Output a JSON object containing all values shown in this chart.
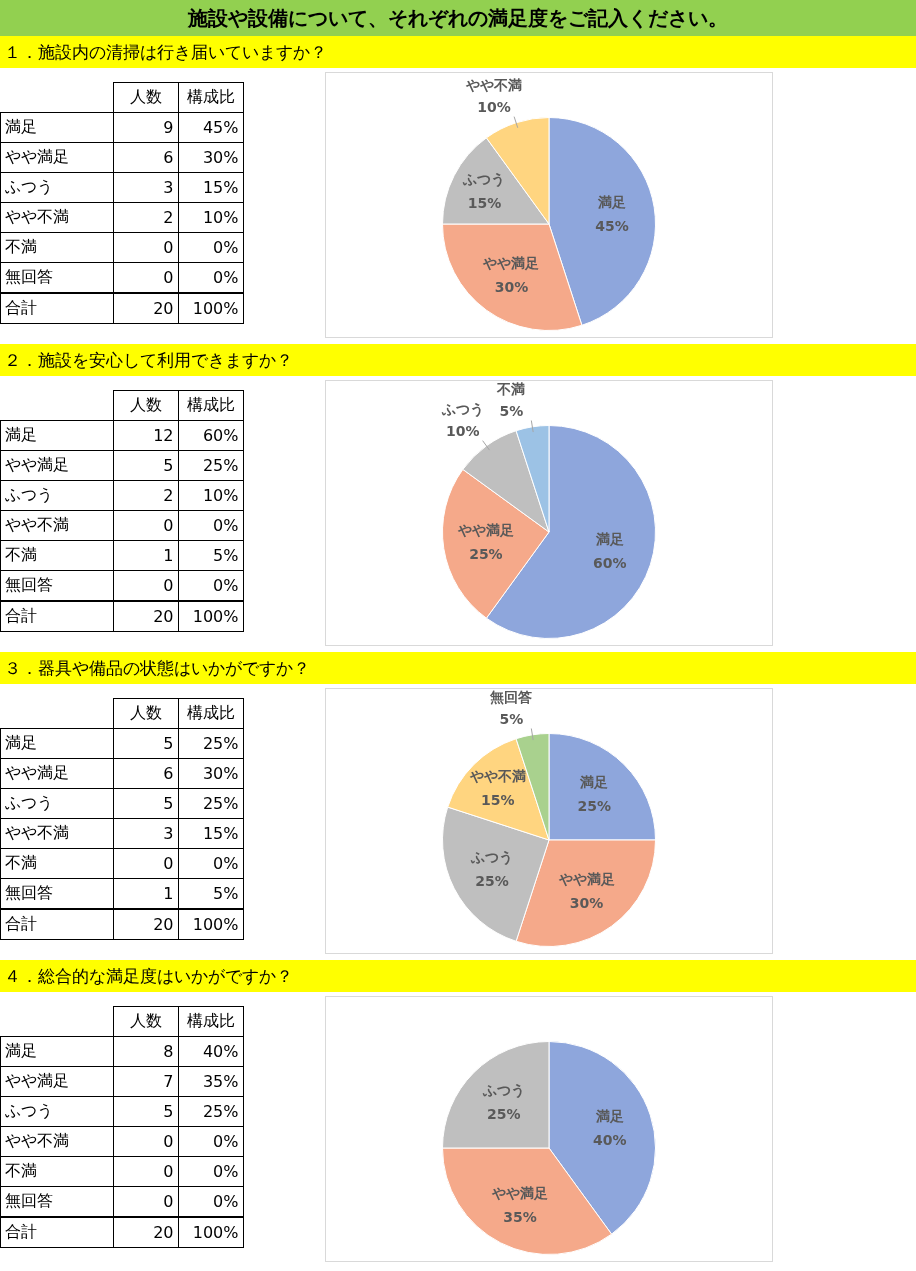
{
  "chart_data": [
    {
      "type": "other",
      "title": "施設や設備について、それぞれの満足度をご記入ください。"
    },
    {
      "type": "other",
      "title": "１．施設内の清掃は行き届いていますか？",
      "categories": [
        "満足",
        "やや満足",
        "ふつう",
        "やや不満",
        "不満",
        "無回答"
      ],
      "data_labels": true,
      "series": [
        {
          "name": "人数",
          "values": [
            9,
            6,
            3,
            2,
            0,
            0
          ]
        },
        {
          "name": "構成比",
          "values": [
            45,
            30,
            15,
            10,
            0,
            0
          ],
          "value_labels": [
            "45%",
            "30%",
            "15%",
            "10%",
            "0%",
            "0%"
          ]
        }
      ],
      "annotations": [
        "合計",
        "20",
        "100%"
      ]
    },
    {
      "type": "pie",
      "categories": [
        "満足",
        "やや満足",
        "ふつう",
        "やや不満"
      ],
      "values": [
        45,
        30,
        15,
        10
      ],
      "value_labels": [
        "45%",
        "30%",
        "15%",
        "10%"
      ],
      "colors": [
        "#8ea6dc",
        "#f5a98a",
        "#bfbfbf",
        "#ffd580"
      ]
    },
    {
      "type": "other",
      "title": "２．施設を安心して利用できますか？",
      "categories": [
        "満足",
        "やや満足",
        "ふつう",
        "やや不満",
        "不満",
        "無回答"
      ],
      "data_labels": true,
      "series": [
        {
          "name": "人数",
          "values": [
            12,
            5,
            2,
            0,
            1,
            0
          ]
        },
        {
          "name": "構成比",
          "values": [
            60,
            25,
            10,
            0,
            5,
            0
          ],
          "value_labels": [
            "60%",
            "25%",
            "10%",
            "0%",
            "5%",
            "0%"
          ]
        }
      ],
      "annotations": [
        "合計",
        "20",
        "100%"
      ]
    },
    {
      "type": "pie",
      "categories": [
        "満足",
        "やや満足",
        "ふつう",
        "不満"
      ],
      "values": [
        60,
        25,
        10,
        5
      ],
      "value_labels": [
        "60%",
        "25%",
        "10%",
        "5%"
      ],
      "colors": [
        "#8ea6dc",
        "#f5a98a",
        "#bfbfbf",
        "#9cc2e5"
      ]
    },
    {
      "type": "other",
      "title": "３．器具や備品の状態はいかがですか？",
      "categories": [
        "満足",
        "やや満足",
        "ふつう",
        "やや不満",
        "不満",
        "無回答"
      ],
      "data_labels": true,
      "series": [
        {
          "name": "人数",
          "values": [
            5,
            6,
            5,
            3,
            0,
            1
          ]
        },
        {
          "name": "構成比",
          "values": [
            25,
            30,
            25,
            15,
            0,
            5
          ],
          "value_labels": [
            "25%",
            "30%",
            "25%",
            "15%",
            "0%",
            "5%"
          ]
        }
      ],
      "annotations": [
        "合計",
        "20",
        "100%"
      ]
    },
    {
      "type": "pie",
      "categories": [
        "満足",
        "やや満足",
        "ふつう",
        "やや不満",
        "無回答"
      ],
      "values": [
        25,
        30,
        25,
        15,
        5
      ],
      "value_labels": [
        "25%",
        "30%",
        "25%",
        "15%",
        "5%"
      ],
      "colors": [
        "#8ea6dc",
        "#f5a98a",
        "#bfbfbf",
        "#ffd580",
        "#a9d18e"
      ]
    },
    {
      "type": "other",
      "title": "４．総合的な満足度はいかがですか？",
      "categories": [
        "満足",
        "やや満足",
        "ふつう",
        "やや不満",
        "不満",
        "無回答"
      ],
      "data_labels": true,
      "series": [
        {
          "name": "人数",
          "values": [
            8,
            7,
            5,
            0,
            0,
            0
          ]
        },
        {
          "name": "構成比",
          "values": [
            40,
            35,
            25,
            0,
            0,
            0
          ],
          "value_labels": [
            "40%",
            "35%",
            "25%",
            "0%",
            "0%",
            "0%"
          ]
        }
      ],
      "annotations": [
        "合計",
        "20",
        "100%"
      ]
    },
    {
      "type": "pie",
      "categories": [
        "満足",
        "やや満足",
        "ふつう"
      ],
      "values": [
        40,
        35,
        25
      ],
      "value_labels": [
        "40%",
        "35%",
        "25%"
      ],
      "colors": [
        "#8ea6dc",
        "#f5a98a",
        "#bfbfbf"
      ]
    }
  ]
}
